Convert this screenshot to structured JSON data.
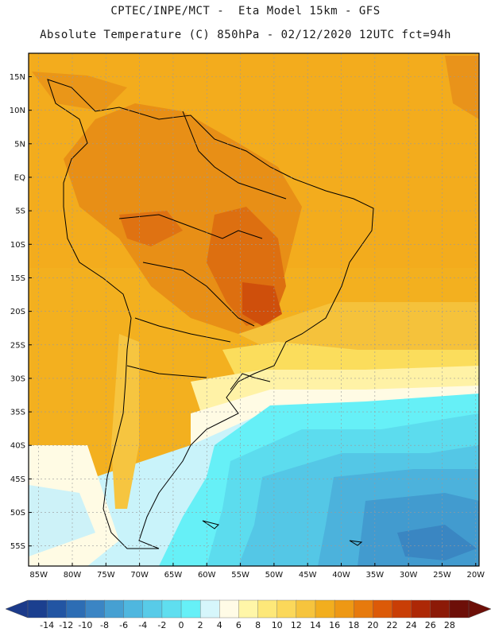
{
  "header": {
    "line1": "CPTEC/INPE/MCT -  Eta Model 15km - GFS",
    "line2": "Absolute Temperature (C) 850hPa - 02/12/2020 12UTC fct=94h"
  },
  "map": {
    "lat_labels": [
      "15N",
      "10N",
      "5N",
      "EQ",
      "5S",
      "10S",
      "15S",
      "20S",
      "25S",
      "30S",
      "35S",
      "40S",
      "45S",
      "50S",
      "55S"
    ],
    "lat_values": [
      15,
      10,
      5,
      0,
      -5,
      -10,
      -15,
      -20,
      -25,
      -30,
      -35,
      -40,
      -45,
      -50,
      -55
    ],
    "lon_labels": [
      "85W",
      "80W",
      "75W",
      "70W",
      "65W",
      "60W",
      "55W",
      "50W",
      "45W",
      "40W",
      "35W",
      "30W",
      "25W",
      "20W"
    ],
    "lon_values": [
      -85,
      -80,
      -75,
      -70,
      -65,
      -60,
      -55,
      -50,
      -45,
      -40,
      -35,
      -30,
      -25,
      -20
    ],
    "lat_range": [
      -58,
      18.5
    ],
    "lon_range": [
      -86.5,
      -19.5
    ]
  },
  "colorbar": {
    "labels": [
      "-14",
      "-12",
      "-10",
      "-8",
      "-6",
      "-4",
      "-2",
      "0",
      "2",
      "4",
      "6",
      "8",
      "10",
      "12",
      "14",
      "16",
      "18",
      "20",
      "22",
      "24",
      "26",
      "28"
    ],
    "colors": [
      "#1b3f8f",
      "#2255a3",
      "#2d6db4",
      "#3b85c4",
      "#46a0d2",
      "#4fb7df",
      "#58cbe8",
      "#5fdeef",
      "#66f0f7",
      "#d6f6fb",
      "#fffbe6",
      "#fff6a8",
      "#fde879",
      "#fbd85a",
      "#f6c43d",
      "#f2ae1e",
      "#ee9814",
      "#e77a0d",
      "#dc5a08",
      "#c93e06",
      "#ad2806",
      "#8c1a07",
      "#6d0f08"
    ],
    "under_color": "#1b3a8a",
    "over_color": "#6d0f08"
  }
}
